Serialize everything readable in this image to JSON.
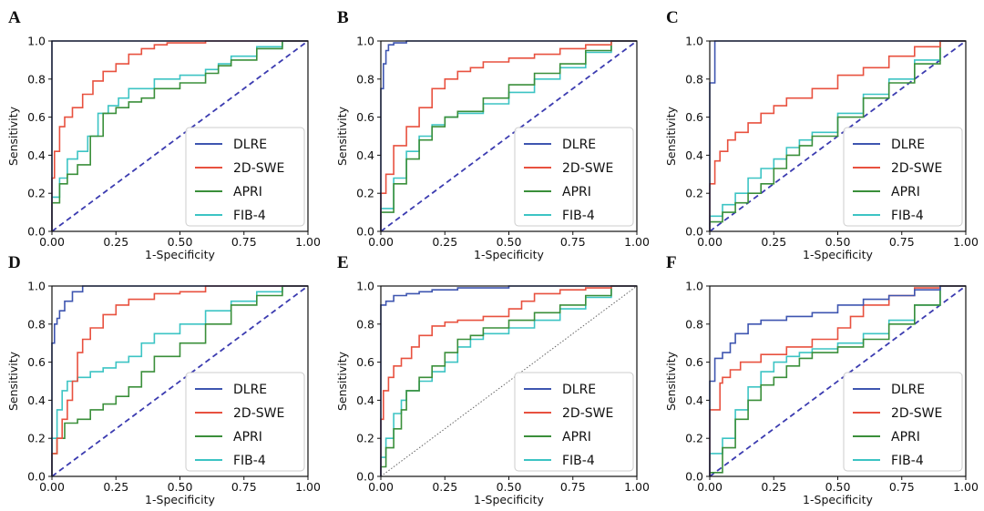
{
  "colors": {
    "DLRE": "#3e55b0",
    "2D-SWE": "#e8513f",
    "APRI": "#3a8f3a",
    "FIB-4": "#3cc4c4",
    "diagonal": "#3b3bb0",
    "diagonal_dotted": "#666666"
  },
  "legend_labels": [
    "DLRE",
    "2D-SWE",
    "APRI",
    "FIB-4"
  ],
  "chart_data": [
    {
      "type": "line",
      "panel": "A",
      "xlabel": "1-Specificity",
      "ylabel": "Sensitivity",
      "xlim": [
        0,
        1
      ],
      "ylim": [
        0,
        1
      ],
      "xticks": [
        "0.00",
        "0.25",
        "0.50",
        "0.75",
        "1.00"
      ],
      "yticks": [
        "0.0",
        "0.2",
        "0.4",
        "0.6",
        "0.8",
        "1.0"
      ],
      "grid": false,
      "legend": "bottom-right",
      "reference_line": "dashed",
      "series": [
        {
          "name": "DLRE",
          "x": [
            0,
            0,
            1
          ],
          "y": [
            0,
            1,
            1
          ]
        },
        {
          "name": "2D-SWE",
          "x": [
            0,
            0.01,
            0.03,
            0.05,
            0.08,
            0.12,
            0.16,
            0.2,
            0.25,
            0.3,
            0.35,
            0.4,
            0.45,
            0.5,
            0.6,
            0.7,
            0.8,
            0.9,
            1
          ],
          "y": [
            0,
            0.28,
            0.42,
            0.55,
            0.6,
            0.65,
            0.72,
            0.79,
            0.84,
            0.88,
            0.93,
            0.96,
            0.98,
            0.99,
            0.99,
            1,
            1,
            1,
            1
          ]
        },
        {
          "name": "APRI",
          "x": [
            0,
            0.03,
            0.06,
            0.1,
            0.15,
            0.2,
            0.25,
            0.3,
            0.35,
            0.4,
            0.5,
            0.6,
            0.65,
            0.7,
            0.8,
            0.9,
            1
          ],
          "y": [
            0,
            0.15,
            0.25,
            0.3,
            0.35,
            0.5,
            0.62,
            0.65,
            0.68,
            0.7,
            0.75,
            0.78,
            0.83,
            0.87,
            0.9,
            0.96,
            1
          ]
        },
        {
          "name": "FIB-4",
          "x": [
            0,
            0.03,
            0.06,
            0.1,
            0.14,
            0.18,
            0.22,
            0.26,
            0.3,
            0.4,
            0.5,
            0.6,
            0.65,
            0.7,
            0.8,
            0.9,
            1
          ],
          "y": [
            0,
            0.18,
            0.28,
            0.38,
            0.42,
            0.5,
            0.62,
            0.66,
            0.7,
            0.75,
            0.8,
            0.82,
            0.85,
            0.88,
            0.92,
            0.97,
            1
          ]
        }
      ]
    },
    {
      "type": "line",
      "panel": "B",
      "xlabel": "1-Specificity",
      "ylabel": "Sensitivity",
      "xlim": [
        0,
        1
      ],
      "ylim": [
        0,
        1
      ],
      "xticks": [
        "0.00",
        "0.25",
        "0.50",
        "0.75",
        "1.00"
      ],
      "yticks": [
        "0.0",
        "0.2",
        "0.4",
        "0.6",
        "0.8",
        "1.0"
      ],
      "grid": false,
      "legend": "bottom-right",
      "reference_line": "dashed",
      "series": [
        {
          "name": "DLRE",
          "x": [
            0,
            0,
            0.01,
            0.02,
            0.03,
            0.05,
            0.1,
            0.2,
            1
          ],
          "y": [
            0,
            0.65,
            0.75,
            0.88,
            0.95,
            0.98,
            0.99,
            1,
            1
          ]
        },
        {
          "name": "2D-SWE",
          "x": [
            0,
            0.02,
            0.05,
            0.1,
            0.15,
            0.2,
            0.25,
            0.3,
            0.35,
            0.4,
            0.5,
            0.6,
            0.7,
            0.8,
            0.9,
            1
          ],
          "y": [
            0,
            0.2,
            0.3,
            0.45,
            0.55,
            0.65,
            0.75,
            0.8,
            0.84,
            0.86,
            0.89,
            0.91,
            0.93,
            0.96,
            0.98,
            1
          ]
        },
        {
          "name": "APRI",
          "x": [
            0,
            0.05,
            0.1,
            0.15,
            0.2,
            0.25,
            0.3,
            0.4,
            0.5,
            0.6,
            0.7,
            0.8,
            0.9,
            1
          ],
          "y": [
            0,
            0.1,
            0.25,
            0.38,
            0.48,
            0.55,
            0.6,
            0.63,
            0.7,
            0.77,
            0.83,
            0.88,
            0.95,
            1
          ]
        },
        {
          "name": "FIB-4",
          "x": [
            0,
            0.05,
            0.1,
            0.15,
            0.2,
            0.25,
            0.3,
            0.4,
            0.5,
            0.6,
            0.7,
            0.8,
            0.9,
            1
          ],
          "y": [
            0,
            0.12,
            0.28,
            0.42,
            0.5,
            0.56,
            0.6,
            0.62,
            0.67,
            0.73,
            0.8,
            0.86,
            0.94,
            1
          ]
        }
      ]
    },
    {
      "type": "line",
      "panel": "C",
      "xlabel": "1-Specificity",
      "ylabel": "Sensitivity",
      "xlim": [
        0,
        1
      ],
      "ylim": [
        0,
        1
      ],
      "xticks": [
        "0.00",
        "0.25",
        "0.50",
        "0.75",
        "1.00"
      ],
      "yticks": [
        "0.0",
        "0.2",
        "0.4",
        "0.6",
        "0.8",
        "1.0"
      ],
      "grid": false,
      "legend": "bottom-right",
      "reference_line": "dashed",
      "series": [
        {
          "name": "DLRE",
          "x": [
            0,
            0,
            0.02,
            0.02,
            1
          ],
          "y": [
            0,
            0.78,
            0.78,
            1,
            1
          ]
        },
        {
          "name": "2D-SWE",
          "x": [
            0,
            0.02,
            0.04,
            0.07,
            0.1,
            0.15,
            0.2,
            0.25,
            0.3,
            0.4,
            0.5,
            0.6,
            0.7,
            0.8,
            0.9,
            1
          ],
          "y": [
            0,
            0.25,
            0.37,
            0.42,
            0.48,
            0.52,
            0.57,
            0.62,
            0.66,
            0.7,
            0.75,
            0.82,
            0.86,
            0.92,
            0.97,
            1
          ]
        },
        {
          "name": "APRI",
          "x": [
            0,
            0.05,
            0.1,
            0.15,
            0.2,
            0.25,
            0.3,
            0.35,
            0.4,
            0.5,
            0.6,
            0.7,
            0.8,
            0.9,
            1
          ],
          "y": [
            0,
            0.05,
            0.1,
            0.15,
            0.2,
            0.25,
            0.33,
            0.4,
            0.45,
            0.5,
            0.6,
            0.7,
            0.78,
            0.88,
            1
          ]
        },
        {
          "name": "FIB-4",
          "x": [
            0,
            0.05,
            0.1,
            0.15,
            0.2,
            0.25,
            0.3,
            0.35,
            0.4,
            0.5,
            0.6,
            0.7,
            0.8,
            0.9,
            1
          ],
          "y": [
            0,
            0.08,
            0.14,
            0.2,
            0.28,
            0.33,
            0.38,
            0.44,
            0.48,
            0.52,
            0.62,
            0.72,
            0.8,
            0.9,
            1
          ]
        }
      ]
    },
    {
      "type": "line",
      "panel": "D",
      "xlabel": "1-Specificity",
      "ylabel": "Sensitivity",
      "xlim": [
        0,
        1
      ],
      "ylim": [
        0,
        1
      ],
      "xticks": [
        "0.00",
        "0.25",
        "0.50",
        "0.75",
        "1.00"
      ],
      "yticks": [
        "0.0",
        "0.2",
        "0.4",
        "0.6",
        "0.8",
        "1.0"
      ],
      "grid": false,
      "legend": "bottom-right",
      "reference_line": "dashed",
      "series": [
        {
          "name": "DLRE",
          "x": [
            0,
            0,
            0.01,
            0.02,
            0.03,
            0.05,
            0.08,
            0.12,
            0.18,
            1
          ],
          "y": [
            0,
            0.6,
            0.7,
            0.8,
            0.83,
            0.87,
            0.92,
            0.97,
            1,
            1
          ]
        },
        {
          "name": "2D-SWE",
          "x": [
            0,
            0.02,
            0.04,
            0.06,
            0.08,
            0.1,
            0.12,
            0.15,
            0.2,
            0.25,
            0.3,
            0.4,
            0.5,
            0.6,
            0.65,
            1
          ],
          "y": [
            0,
            0.12,
            0.2,
            0.3,
            0.4,
            0.5,
            0.65,
            0.72,
            0.78,
            0.85,
            0.9,
            0.93,
            0.96,
            0.97,
            1,
            1
          ]
        },
        {
          "name": "APRI",
          "x": [
            0,
            0.02,
            0.05,
            0.1,
            0.15,
            0.2,
            0.25,
            0.3,
            0.35,
            0.4,
            0.5,
            0.6,
            0.7,
            0.8,
            0.9,
            1
          ],
          "y": [
            0,
            0.12,
            0.2,
            0.28,
            0.3,
            0.35,
            0.38,
            0.42,
            0.47,
            0.55,
            0.63,
            0.7,
            0.8,
            0.9,
            0.95,
            1
          ]
        },
        {
          "name": "FIB-4",
          "x": [
            0,
            0.02,
            0.04,
            0.06,
            0.1,
            0.15,
            0.2,
            0.25,
            0.3,
            0.35,
            0.4,
            0.5,
            0.6,
            0.7,
            0.8,
            0.9,
            1
          ],
          "y": [
            0,
            0.2,
            0.35,
            0.45,
            0.5,
            0.52,
            0.55,
            0.57,
            0.6,
            0.63,
            0.7,
            0.75,
            0.8,
            0.87,
            0.92,
            0.97,
            1
          ]
        }
      ]
    },
    {
      "type": "line",
      "panel": "E",
      "xlabel": "1-Specificity",
      "ylabel": "Sensitivity",
      "xlim": [
        0,
        1
      ],
      "ylim": [
        0,
        1
      ],
      "xticks": [
        "0.00",
        "0.25",
        "0.50",
        "0.75",
        "1.00"
      ],
      "yticks": [
        "0.0",
        "0.2",
        "0.4",
        "0.6",
        "0.8",
        "1.0"
      ],
      "grid": false,
      "legend": "bottom-right",
      "reference_line": "dotted",
      "series": [
        {
          "name": "DLRE",
          "x": [
            0,
            0,
            0.02,
            0.05,
            0.1,
            0.15,
            0.2,
            0.3,
            0.5,
            0.7,
            0.9,
            1
          ],
          "y": [
            0,
            0.85,
            0.9,
            0.92,
            0.95,
            0.96,
            0.97,
            0.98,
            0.99,
            1,
            1,
            1
          ]
        },
        {
          "name": "2D-SWE",
          "x": [
            0,
            0.01,
            0.03,
            0.05,
            0.08,
            0.12,
            0.15,
            0.2,
            0.25,
            0.3,
            0.4,
            0.5,
            0.55,
            0.6,
            0.7,
            0.8,
            0.9,
            1
          ],
          "y": [
            0,
            0.3,
            0.45,
            0.52,
            0.58,
            0.62,
            0.68,
            0.74,
            0.79,
            0.81,
            0.82,
            0.84,
            0.88,
            0.92,
            0.96,
            0.98,
            0.99,
            1
          ]
        },
        {
          "name": "APRI",
          "x": [
            0,
            0.02,
            0.05,
            0.08,
            0.1,
            0.15,
            0.2,
            0.25,
            0.3,
            0.35,
            0.4,
            0.5,
            0.6,
            0.7,
            0.8,
            0.9,
            1
          ],
          "y": [
            0,
            0.05,
            0.15,
            0.25,
            0.35,
            0.45,
            0.52,
            0.58,
            0.65,
            0.72,
            0.74,
            0.78,
            0.82,
            0.86,
            0.9,
            0.95,
            1
          ]
        },
        {
          "name": "FIB-4",
          "x": [
            0,
            0.02,
            0.05,
            0.08,
            0.1,
            0.15,
            0.2,
            0.25,
            0.3,
            0.35,
            0.4,
            0.5,
            0.6,
            0.7,
            0.8,
            0.9,
            1
          ],
          "y": [
            0,
            0.1,
            0.2,
            0.33,
            0.4,
            0.45,
            0.5,
            0.55,
            0.6,
            0.68,
            0.72,
            0.75,
            0.78,
            0.82,
            0.88,
            0.94,
            1
          ]
        }
      ]
    },
    {
      "type": "line",
      "panel": "F",
      "xlabel": "1-Specificity",
      "ylabel": "Sensitivity",
      "xlim": [
        0,
        1
      ],
      "ylim": [
        0,
        1
      ],
      "xticks": [
        "0.00",
        "0.25",
        "0.50",
        "0.75",
        "1.00"
      ],
      "yticks": [
        "0.0",
        "0.2",
        "0.4",
        "0.6",
        "0.8",
        "1.0"
      ],
      "grid": false,
      "legend": "bottom-right",
      "reference_line": "dashed",
      "series": [
        {
          "name": "DLRE",
          "x": [
            0,
            0,
            0.02,
            0.05,
            0.08,
            0.1,
            0.15,
            0.2,
            0.3,
            0.4,
            0.5,
            0.6,
            0.7,
            0.8,
            0.9,
            1
          ],
          "y": [
            0,
            0.49,
            0.5,
            0.62,
            0.65,
            0.7,
            0.75,
            0.8,
            0.82,
            0.84,
            0.86,
            0.9,
            0.93,
            0.95,
            0.98,
            1
          ]
        },
        {
          "name": "2D-SWE",
          "x": [
            0,
            0,
            0.04,
            0.05,
            0.08,
            0.12,
            0.2,
            0.3,
            0.4,
            0.5,
            0.55,
            0.6,
            0.7,
            0.8,
            0.9,
            1
          ],
          "y": [
            0,
            0.35,
            0.35,
            0.49,
            0.52,
            0.56,
            0.6,
            0.64,
            0.68,
            0.72,
            0.78,
            0.84,
            0.9,
            0.95,
            0.99,
            1
          ]
        },
        {
          "name": "APRI",
          "x": [
            0,
            0.05,
            0.1,
            0.15,
            0.2,
            0.25,
            0.3,
            0.35,
            0.4,
            0.5,
            0.6,
            0.7,
            0.8,
            0.9,
            1
          ],
          "y": [
            0,
            0.02,
            0.15,
            0.3,
            0.4,
            0.48,
            0.52,
            0.58,
            0.62,
            0.65,
            0.68,
            0.72,
            0.8,
            0.9,
            1
          ]
        },
        {
          "name": "FIB-4",
          "x": [
            0,
            0.05,
            0.1,
            0.15,
            0.2,
            0.25,
            0.3,
            0.35,
            0.4,
            0.5,
            0.6,
            0.7,
            0.8,
            0.9,
            1
          ],
          "y": [
            0,
            0.12,
            0.2,
            0.35,
            0.47,
            0.55,
            0.6,
            0.63,
            0.65,
            0.67,
            0.7,
            0.75,
            0.82,
            0.9,
            1
          ]
        }
      ]
    }
  ]
}
